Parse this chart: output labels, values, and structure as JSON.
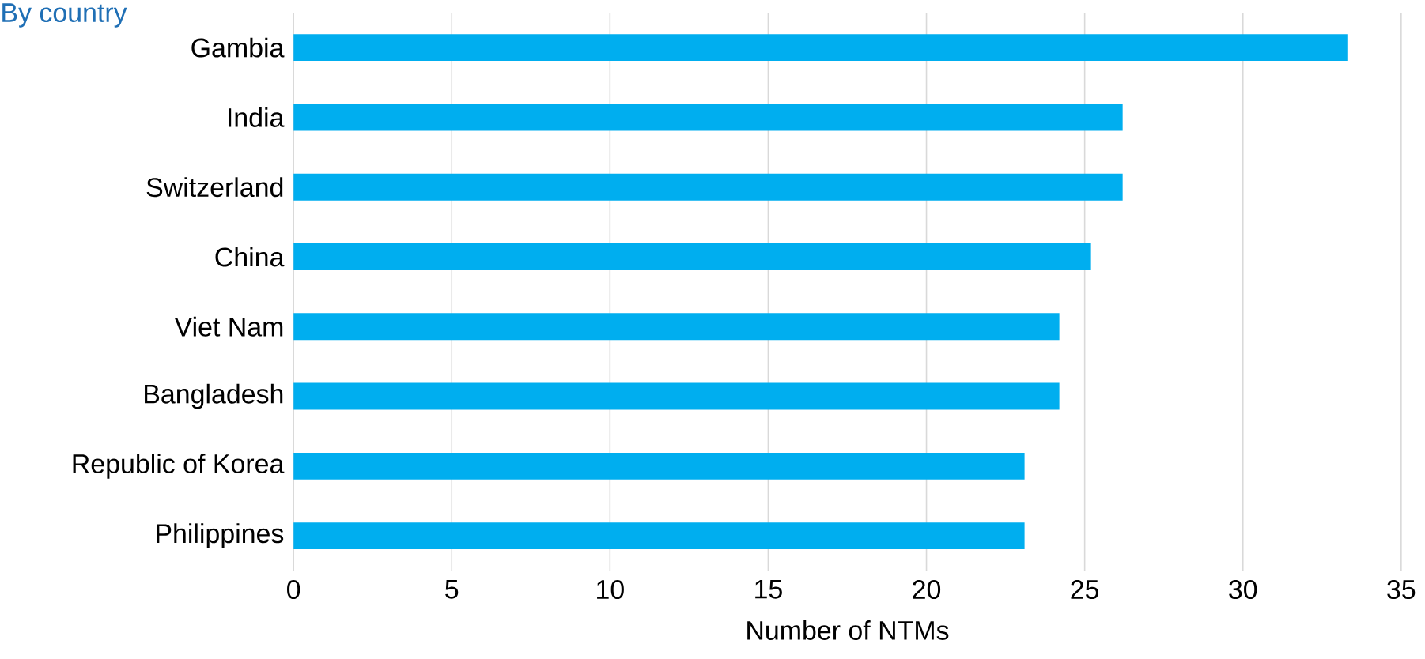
{
  "chart_data": {
    "type": "bar",
    "orientation": "horizontal",
    "title": "By country",
    "xlabel": "Number of NTMs",
    "categories": [
      "Gambia",
      "India",
      "Switzerland",
      "China",
      "Viet Nam",
      "Bangladesh",
      "Republic of Korea",
      "Philippines"
    ],
    "values": [
      33.3,
      26.2,
      26.2,
      25.2,
      24.2,
      24.2,
      23.1,
      23.1
    ],
    "color": "#00aeef",
    "xlim": [
      0,
      35
    ],
    "xticks": [
      0,
      5,
      10,
      15,
      20,
      25,
      30,
      35
    ],
    "grid": "x"
  }
}
